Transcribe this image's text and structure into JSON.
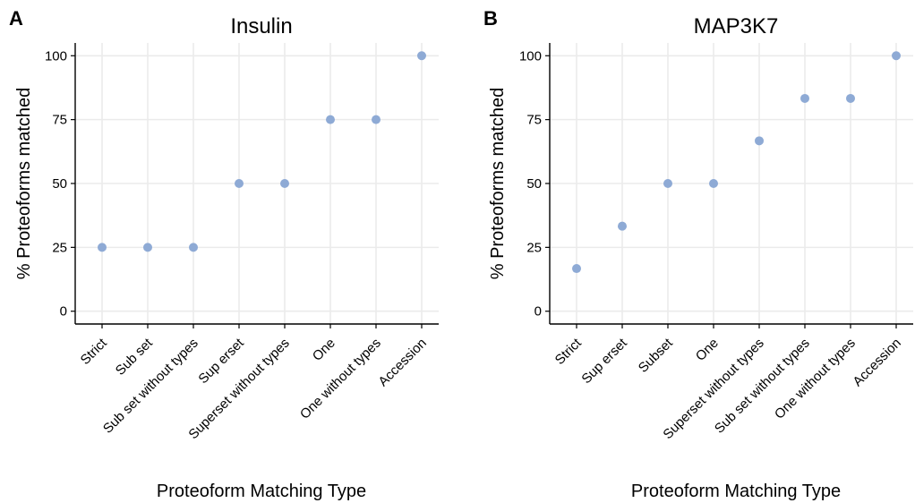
{
  "chart_data": [
    {
      "type": "scatter",
      "panel_label": "A",
      "title": "Insulin",
      "xlabel": "Proteoform Matching Type",
      "ylabel": "% Proteoforms matched",
      "categories": [
        "Strict",
        "Subset",
        "Subset without types",
        "Superset",
        "Superset without types",
        "One",
        "One without types",
        "Accession"
      ],
      "category_labels": [
        "Strict",
        "Sub set",
        "Sub set without types",
        "Sup erset",
        "Superset without types",
        "One",
        "One without types",
        "Accession"
      ],
      "values": [
        25,
        25,
        25,
        50,
        50,
        75,
        75,
        100
      ],
      "yticks": [
        0,
        25,
        50,
        75,
        100
      ],
      "ylim": [
        -5,
        105
      ],
      "grid": true,
      "point_color": "#8eaad5"
    },
    {
      "type": "scatter",
      "panel_label": "B",
      "title": "MAP3K7",
      "xlabel": "Proteoform Matching Type",
      "ylabel": "% Proteoforms matched",
      "categories": [
        "Strict",
        "Superset",
        "Subset",
        "One",
        "Superset without types",
        "Subset without types",
        "One without types",
        "Accession"
      ],
      "category_labels": [
        "Strict",
        "Sup erset",
        "Subset",
        "One",
        "Superset without types",
        "Sub set without types",
        "One without types",
        "Accession"
      ],
      "values": [
        16.7,
        33.3,
        50,
        50,
        66.7,
        83.3,
        83.3,
        100
      ],
      "yticks": [
        0,
        25,
        50,
        75,
        100
      ],
      "ylim": [
        -5,
        105
      ],
      "grid": true,
      "point_color": "#8eaad5"
    }
  ]
}
